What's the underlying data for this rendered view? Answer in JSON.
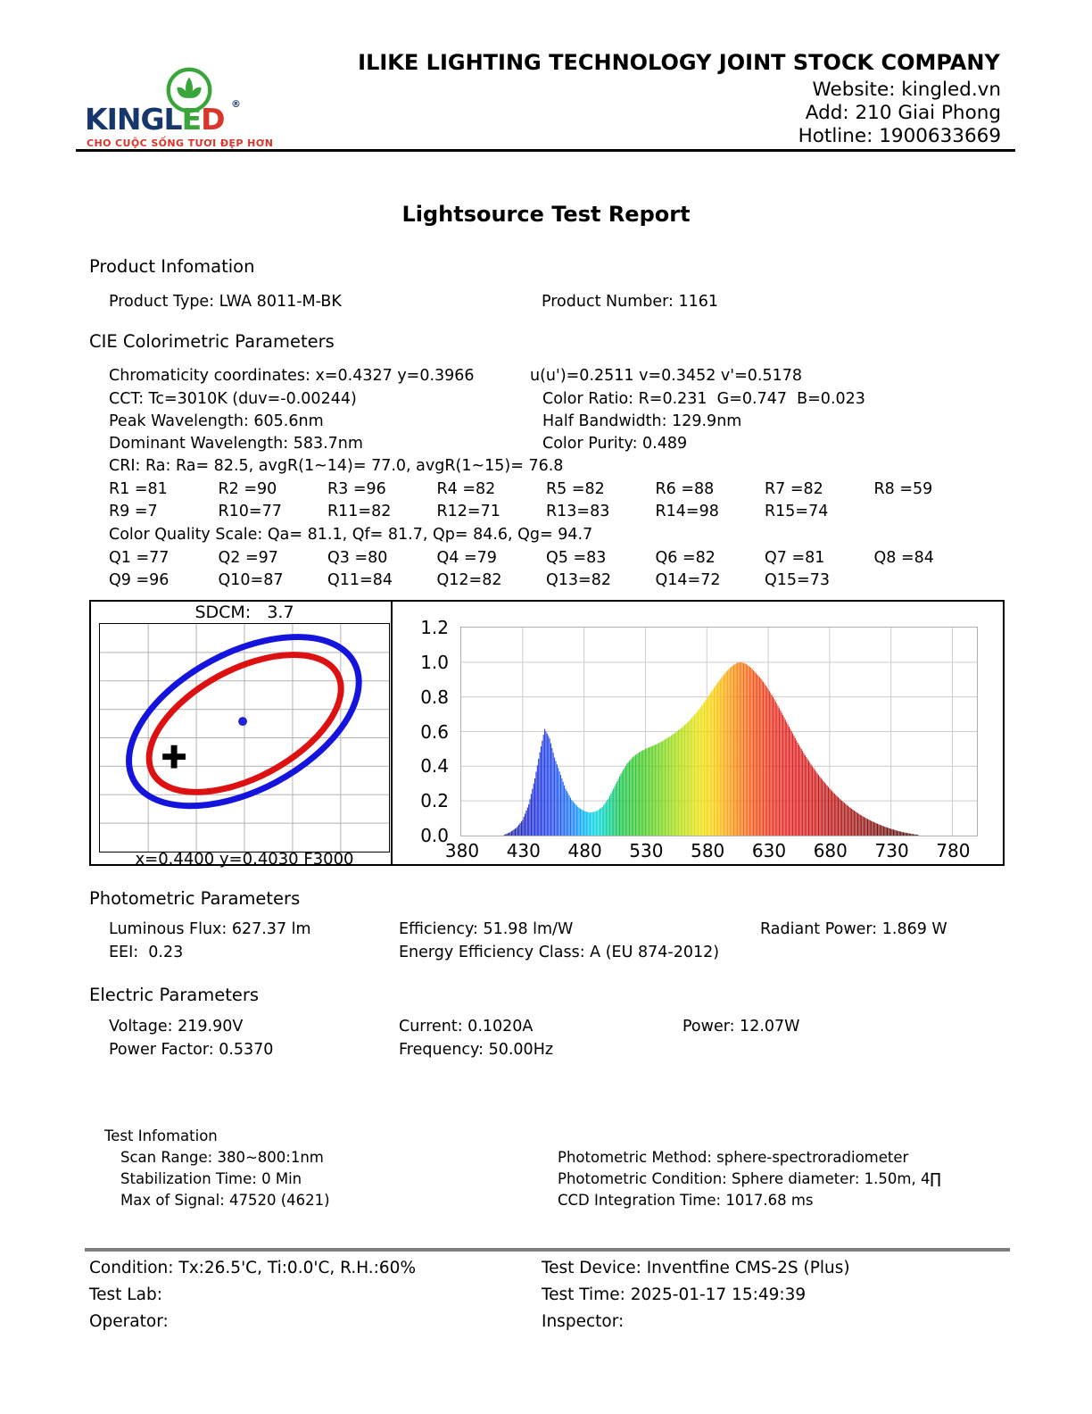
{
  "header": {
    "company": "ILIKE LIGHTING TECHNOLOGY JOINT STOCK COMPANY",
    "website": "Website: kingled.vn",
    "address": "Add: 210 Giai Phong",
    "hotline": "Hotline: 1900633669",
    "logo": {
      "wordmark_left": "KINGL",
      "wordmark_e": "E",
      "wordmark_d": "D",
      "registered": "®",
      "tagline": "CHO CUỘC SỐNG TƯƠI ĐẸP HƠN",
      "brand_blue": "#17366b",
      "brand_green": "#3aa53a",
      "brand_red": "#d9362b"
    }
  },
  "title": "Lightsource Test Report",
  "product": {
    "heading": "Product Infomation",
    "type_line": "Product Type: LWA 8011-M-BK",
    "number_line": "Product Number: 1161"
  },
  "cie": {
    "heading": "CIE Colorimetric Parameters",
    "line1_left": "Chromaticity coordinates: x=0.4327 y=0.3966",
    "line1_right": "u(u')=0.2511 v=0.3452 v'=0.5178",
    "line2_left": "CCT: Tc=3010K (duv=-0.00244)",
    "line2_right": "Color Ratio: R=0.231  G=0.747  B=0.023",
    "line3_left": "Peak Wavelength: 605.6nm",
    "line3_right": "Half Bandwidth: 129.9nm",
    "line4_left": "Dominant Wavelength: 583.7nm",
    "line4_right": "Color Purity: 0.489",
    "cri_line": "CRI: Ra: Ra= 82.5, avgR(1~14)= 77.0, avgR(1~15)= 76.8",
    "r_row1": [
      "R1 =81",
      "R2 =90",
      "R3 =96",
      "R4 =82",
      "R5 =82",
      "R6 =88",
      "R7 =82",
      "R8 =59"
    ],
    "r_row2": [
      "R9 =7",
      "R10=77",
      "R11=82",
      "R12=71",
      "R13=83",
      "R14=98",
      "R15=74"
    ],
    "cqs_line": "Color Quality Scale: Qa= 81.1, Qf= 81.7, Qp= 84.6, Qg= 94.7",
    "q_row1": [
      "Q1 =77",
      "Q2 =97",
      "Q3 =80",
      "Q4 =79",
      "Q5 =83",
      "Q6 =82",
      "Q7 =81",
      "Q8 =84"
    ],
    "q_row2": [
      "Q9 =96",
      "Q10=87",
      "Q11=84",
      "Q12=82",
      "Q13=82",
      "Q14=72",
      "Q15=73"
    ]
  },
  "chart_data": [
    {
      "type": "scatter",
      "name": "sdcm-chromaticity-diagram",
      "title": "SDCM:   3.7",
      "sdcm": 3.7,
      "bottom_label": "x=0.4400 y=0.4030 F3000",
      "target": {
        "x": 0.44,
        "y": 0.403,
        "bin": "F3000"
      },
      "measured": {
        "x": 0.4327,
        "y": 0.3966
      },
      "grid": {
        "cols": 6,
        "rows": 8,
        "color": "#b3b3b3"
      },
      "ellipses": [
        {
          "name": "outer-tolerance-ellipse",
          "color": "#1414dd",
          "cx": 0.498,
          "cy": 0.428,
          "rx": 0.433,
          "ry": 0.302,
          "angle_deg": -28,
          "stroke_width": 7
        },
        {
          "name": "inner-tolerance-ellipse",
          "color": "#dd1111",
          "cx": 0.502,
          "cy": 0.437,
          "rx": 0.363,
          "ry": 0.238,
          "angle_deg": -28,
          "stroke_width": 7
        }
      ],
      "markers": [
        {
          "name": "center-point",
          "shape": "dot",
          "color": "#2222dd",
          "x": 0.494,
          "y": 0.428,
          "r": 5
        },
        {
          "name": "measured-point",
          "shape": "plus",
          "color": "#000000",
          "x": 0.256,
          "y": 0.583,
          "size": 26,
          "stroke_width": 7
        }
      ]
    },
    {
      "type": "area",
      "name": "spectral-power-distribution",
      "x_range": [
        380,
        800
      ],
      "y_range": [
        0,
        1.2
      ],
      "x_ticks": [
        380,
        430,
        480,
        530,
        580,
        630,
        680,
        730,
        780
      ],
      "y_ticks": [
        0.0,
        0.2,
        0.4,
        0.6,
        0.8,
        1.0,
        1.2
      ],
      "y_tick_labels": [
        "1.2",
        "1.0",
        "0.8",
        "0.6",
        "0.4",
        "0.2",
        "0.0"
      ],
      "grid": true,
      "peak_nm": 605.6,
      "curve": [
        [
          415,
          0.004
        ],
        [
          420,
          0.02
        ],
        [
          425,
          0.045
        ],
        [
          430,
          0.09
        ],
        [
          435,
          0.18
        ],
        [
          440,
          0.33
        ],
        [
          444,
          0.48
        ],
        [
          448,
          0.615
        ],
        [
          452,
          0.56
        ],
        [
          456,
          0.45
        ],
        [
          460,
          0.37
        ],
        [
          465,
          0.27
        ],
        [
          470,
          0.205
        ],
        [
          475,
          0.165
        ],
        [
          480,
          0.142
        ],
        [
          485,
          0.132
        ],
        [
          490,
          0.14
        ],
        [
          495,
          0.165
        ],
        [
          500,
          0.215
        ],
        [
          505,
          0.285
        ],
        [
          510,
          0.355
        ],
        [
          515,
          0.415
        ],
        [
          520,
          0.455
        ],
        [
          525,
          0.48
        ],
        [
          530,
          0.5
        ],
        [
          535,
          0.515
        ],
        [
          540,
          0.53
        ],
        [
          545,
          0.55
        ],
        [
          550,
          0.572
        ],
        [
          555,
          0.597
        ],
        [
          560,
          0.625
        ],
        [
          565,
          0.657
        ],
        [
          570,
          0.697
        ],
        [
          575,
          0.74
        ],
        [
          580,
          0.79
        ],
        [
          585,
          0.843
        ],
        [
          590,
          0.893
        ],
        [
          595,
          0.938
        ],
        [
          600,
          0.975
        ],
        [
          605,
          0.998
        ],
        [
          608,
          1.0
        ],
        [
          612,
          0.99
        ],
        [
          616,
          0.968
        ],
        [
          620,
          0.938
        ],
        [
          625,
          0.898
        ],
        [
          630,
          0.845
        ],
        [
          635,
          0.787
        ],
        [
          640,
          0.722
        ],
        [
          645,
          0.655
        ],
        [
          650,
          0.589
        ],
        [
          655,
          0.524
        ],
        [
          660,
          0.464
        ],
        [
          665,
          0.409
        ],
        [
          670,
          0.359
        ],
        [
          675,
          0.314
        ],
        [
          680,
          0.272
        ],
        [
          685,
          0.235
        ],
        [
          690,
          0.201
        ],
        [
          695,
          0.171
        ],
        [
          700,
          0.144
        ],
        [
          705,
          0.12
        ],
        [
          710,
          0.099
        ],
        [
          715,
          0.081
        ],
        [
          720,
          0.065
        ],
        [
          725,
          0.051
        ],
        [
          730,
          0.039
        ],
        [
          735,
          0.028
        ],
        [
          740,
          0.019
        ],
        [
          745,
          0.012
        ],
        [
          750,
          0.006
        ],
        [
          755,
          0.002
        ]
      ]
    }
  ],
  "photometric": {
    "heading": "Photometric Parameters",
    "flux": "Luminous Flux: 627.37 lm",
    "efficiency": "Efficiency: 51.98 lm/W",
    "radiant": "Radiant Power: 1.869 W",
    "eei": "EEI:  0.23",
    "energy_class": "Energy Efficiency Class: A (EU 874-2012)"
  },
  "electric": {
    "heading": "Electric Parameters",
    "voltage": "Voltage: 219.90V",
    "current": "Current: 0.1020A",
    "power": "Power: 12.07W",
    "power_factor": "Power Factor: 0.5370",
    "frequency": "Frequency: 50.00Hz"
  },
  "test_info": {
    "heading": "Test Infomation",
    "scan_range": "Scan Range: 380~800:1nm",
    "method": "Photometric Method: sphere-spectroradiometer",
    "stabilization": "Stabilization Time: 0 Min",
    "condition": "Photometric Condition: Sphere diameter: 1.50m, 4∏",
    "max_signal": "Max of Signal: 47520 (4621)",
    "ccd": "CCD Integration Time: 1017.68 ms"
  },
  "footer": {
    "condition": "Condition: Tx:26.5'C, Ti:0.0'C, R.H.:60%",
    "device": "Test Device: Inventfine CMS-2S (Plus)",
    "lab": "Test Lab:",
    "time": "Test Time: 2025-01-17 15:49:39",
    "operator": "Operator:",
    "inspector": "Inspector:"
  }
}
